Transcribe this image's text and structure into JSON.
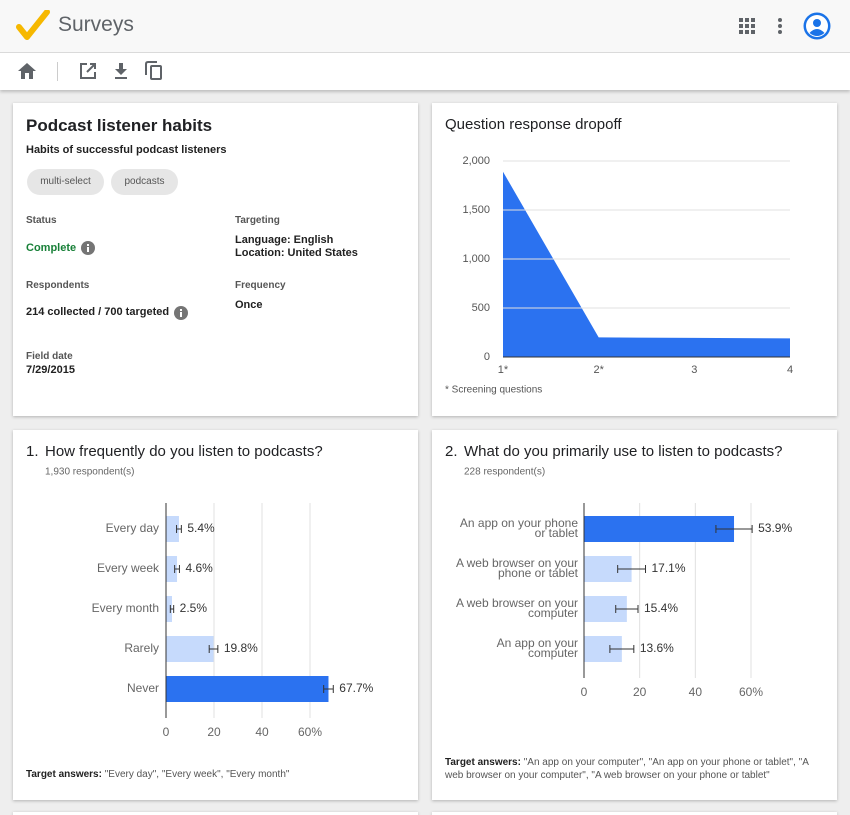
{
  "app": {
    "title": "Surveys"
  },
  "survey": {
    "title": "Podcast listener habits",
    "subtitle": "Habits of successful podcast listeners",
    "tags": [
      "multi-select",
      "podcasts"
    ],
    "status_label": "Status",
    "status": "Complete",
    "targeting_label": "Targeting",
    "targeting": [
      "Language: English",
      "Location: United States"
    ],
    "respondents_label": "Respondents",
    "respondents": "214 collected / 700 targeted",
    "frequency_label": "Frequency",
    "frequency": "Once",
    "field_date_label": "Field date",
    "field_date": "7/29/2015"
  },
  "chart_data": [
    {
      "type": "area",
      "title": "Question response dropoff",
      "note": "* Screening questions",
      "categories": [
        "1*",
        "2*",
        "3",
        "4"
      ],
      "values": [
        1890,
        200,
        195,
        190
      ],
      "color": "#2b72f0",
      "ylim": [
        0,
        2000
      ],
      "yticks": [
        0,
        500,
        {
          "value": 1000,
          "label": "1,000"
        },
        {
          "value": 1500,
          "label": "1,500"
        },
        {
          "value": 2000,
          "label": "2,000"
        }
      ],
      "grid": true
    },
    {
      "type": "hbar",
      "number": "1.",
      "title": "How frequently do you listen to podcasts?",
      "subtitle": "1,930 respondent(s)",
      "categories": [
        "Every day",
        "Every week",
        "Every month",
        "Rarely",
        "Never"
      ],
      "values": [
        5.4,
        4.6,
        2.5,
        19.8,
        67.7
      ],
      "value_labels": [
        "5.4%",
        "4.6%",
        "2.5%",
        "19.8%",
        "67.7%"
      ],
      "errors": [
        1,
        1,
        0.7,
        1.8,
        2
      ],
      "colors": [
        "#c6dafc",
        "#c6dafc",
        "#c6dafc",
        "#c6dafc",
        "#2b72f0"
      ],
      "xlim": [
        0,
        60
      ],
      "xticks": [
        0,
        20,
        40,
        {
          "value": 60,
          "label": "60%"
        }
      ],
      "grid": true,
      "footer_label": "Target answers:",
      "footer": "\"Every day\", \"Every week\", \"Every month\""
    },
    {
      "type": "hbar",
      "number": "2.",
      "title": "What do you primarily use to listen to podcasts?",
      "subtitle": "228 respondent(s)",
      "categories": [
        [
          "An app on your phone",
          "or tablet"
        ],
        [
          "A web browser on your",
          "phone or tablet"
        ],
        [
          "A web browser on your",
          "computer"
        ],
        [
          "An app on your",
          "computer"
        ]
      ],
      "values": [
        53.9,
        17.1,
        15.4,
        13.6
      ],
      "value_labels": [
        "53.9%",
        "17.1%",
        "15.4%",
        "13.6%"
      ],
      "errors": [
        6.5,
        5,
        4,
        4.3
      ],
      "colors": [
        "#2b72f0",
        "#c6dafc",
        "#c6dafc",
        "#c6dafc"
      ],
      "xlim": [
        0,
        60
      ],
      "xticks": [
        0,
        20,
        40,
        {
          "value": 60,
          "label": "60%"
        }
      ],
      "grid": true,
      "footer_label": "Target answers:",
      "footer": "\"An app on your computer\", \"An app on your phone or tablet\", \"A web browser on your computer\", \"A web browser on your phone or tablet\""
    }
  ]
}
